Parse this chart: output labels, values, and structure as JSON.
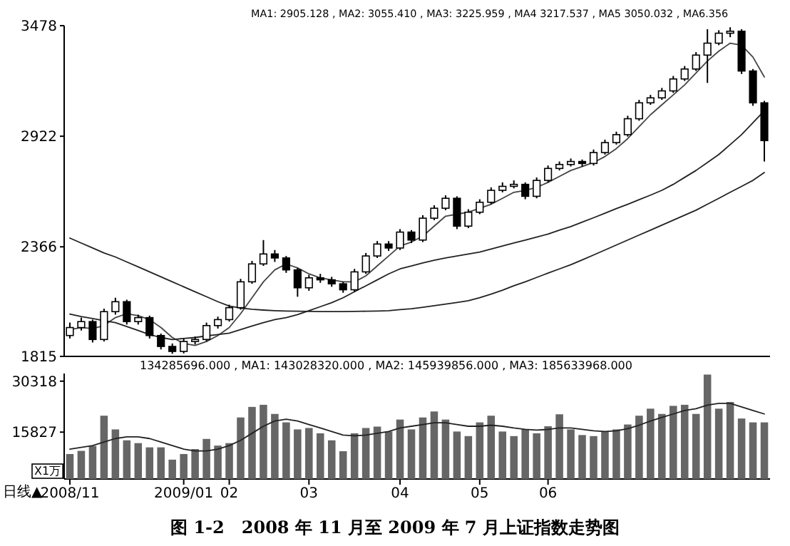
{
  "chart_data": [
    {
      "type": "candlestick",
      "categories": [
        null,
        null,
        null,
        null,
        null,
        null,
        null,
        null,
        null,
        null,
        null,
        null,
        null,
        null,
        null,
        null,
        null,
        null,
        null,
        null,
        null,
        null,
        null,
        null,
        null,
        null,
        null,
        null,
        null,
        null,
        null,
        null,
        null,
        null,
        null,
        null,
        null,
        null,
        null,
        null,
        null,
        null,
        null,
        null,
        null,
        null,
        null,
        null,
        null,
        null,
        null,
        null,
        null,
        null,
        null,
        null,
        null,
        null,
        null,
        null,
        null,
        null
      ],
      "ohlc": [
        [
          1920,
          1985,
          1905,
          1960
        ],
        [
          1960,
          2010,
          1945,
          1990
        ],
        [
          1990,
          2000,
          1885,
          1900
        ],
        [
          1900,
          2055,
          1890,
          2040
        ],
        [
          2040,
          2110,
          2025,
          2090
        ],
        [
          2090,
          2100,
          1975,
          1990
        ],
        [
          1990,
          2025,
          1975,
          2010
        ],
        [
          2010,
          2020,
          1905,
          1920
        ],
        [
          1920,
          1930,
          1850,
          1865
        ],
        [
          1865,
          1880,
          1828,
          1840
        ],
        [
          1840,
          1905,
          1830,
          1890
        ],
        [
          1890,
          1915,
          1875,
          1900
        ],
        [
          1900,
          1985,
          1890,
          1970
        ],
        [
          1970,
          2015,
          1955,
          2000
        ],
        [
          2000,
          2075,
          1990,
          2060
        ],
        [
          2060,
          2205,
          2050,
          2190
        ],
        [
          2190,
          2295,
          2180,
          2280
        ],
        [
          2280,
          2400,
          2270,
          2330
        ],
        [
          2330,
          2350,
          2290,
          2310
        ],
        [
          2310,
          2320,
          2235,
          2250
        ],
        [
          2250,
          2260,
          2115,
          2160
        ],
        [
          2160,
          2225,
          2145,
          2210
        ],
        [
          2210,
          2230,
          2185,
          2200
        ],
        [
          2200,
          2215,
          2165,
          2180
        ],
        [
          2180,
          2190,
          2135,
          2150
        ],
        [
          2150,
          2255,
          2140,
          2240
        ],
        [
          2240,
          2335,
          2230,
          2320
        ],
        [
          2320,
          2395,
          2310,
          2380
        ],
        [
          2380,
          2395,
          2345,
          2360
        ],
        [
          2360,
          2455,
          2350,
          2440
        ],
        [
          2440,
          2450,
          2385,
          2400
        ],
        [
          2400,
          2525,
          2390,
          2510
        ],
        [
          2510,
          2575,
          2500,
          2560
        ],
        [
          2560,
          2625,
          2550,
          2610
        ],
        [
          2610,
          2620,
          2455,
          2470
        ],
        [
          2470,
          2555,
          2460,
          2540
        ],
        [
          2540,
          2605,
          2530,
          2590
        ],
        [
          2590,
          2665,
          2580,
          2650
        ],
        [
          2650,
          2690,
          2640,
          2670
        ],
        [
          2670,
          2700,
          2660,
          2680
        ],
        [
          2680,
          2690,
          2605,
          2620
        ],
        [
          2620,
          2715,
          2610,
          2700
        ],
        [
          2700,
          2775,
          2690,
          2760
        ],
        [
          2760,
          2795,
          2750,
          2780
        ],
        [
          2780,
          2810,
          2770,
          2795
        ],
        [
          2795,
          2805,
          2770,
          2785
        ],
        [
          2785,
          2855,
          2775,
          2840
        ],
        [
          2840,
          2905,
          2830,
          2890
        ],
        [
          2890,
          2945,
          2880,
          2930
        ],
        [
          2930,
          3025,
          2920,
          3010
        ],
        [
          3010,
          3105,
          3000,
          3090
        ],
        [
          3090,
          3130,
          3080,
          3115
        ],
        [
          3115,
          3165,
          3105,
          3150
        ],
        [
          3150,
          3225,
          3140,
          3210
        ],
        [
          3210,
          3275,
          3200,
          3260
        ],
        [
          3260,
          3345,
          3250,
          3330
        ],
        [
          3330,
          3460,
          3190,
          3390
        ],
        [
          3390,
          3455,
          3380,
          3440
        ],
        [
          3440,
          3470,
          3420,
          3450
        ],
        [
          3450,
          3460,
          3235,
          3250
        ],
        [
          3250,
          3260,
          3075,
          3090
        ],
        [
          3090,
          3100,
          2795,
          2900
        ]
      ],
      "series": [
        {
          "type": "line",
          "color": "#444444",
          "values": [
            1950,
            1960,
            1955,
            1970,
            2010,
            2030,
            2020,
            2000,
            1960,
            1910,
            1880,
            1870,
            1890,
            1920,
            1960,
            2030,
            2110,
            2190,
            2250,
            2280,
            2260,
            2230,
            2210,
            2200,
            2190,
            2190,
            2220,
            2270,
            2320,
            2370,
            2390,
            2420,
            2470,
            2520,
            2530,
            2540,
            2560,
            2580,
            2610,
            2640,
            2650,
            2665,
            2690,
            2720,
            2750,
            2770,
            2790,
            2820,
            2860,
            2910,
            2970,
            3030,
            3080,
            3130,
            3180,
            3240,
            3300,
            3350,
            3390,
            3380,
            3320,
            3220
          ]
        },
        {
          "type": "line",
          "color": "#222222",
          "values": [
            2028,
            2015,
            2005,
            1995,
            1985,
            1965,
            1945,
            1925,
            1910,
            1900,
            1905,
            1910,
            1918,
            1925,
            1932,
            1950,
            1968,
            1985,
            2000,
            2010,
            2025,
            2045,
            2065,
            2085,
            2110,
            2140,
            2170,
            2200,
            2230,
            2255,
            2270,
            2285,
            2298,
            2310,
            2320,
            2330,
            2340,
            2355,
            2370,
            2385,
            2400,
            2415,
            2430,
            2450,
            2468,
            2490,
            2512,
            2535,
            2558,
            2580,
            2603,
            2626,
            2650,
            2680,
            2715,
            2750,
            2790,
            2830,
            2880,
            2930,
            2990,
            3050
          ]
        },
        {
          "type": "line",
          "color": "#222222",
          "values": [
            2410,
            2385,
            2360,
            2335,
            2315,
            2290,
            2265,
            2240,
            2215,
            2190,
            2165,
            2140,
            2115,
            2090,
            2068,
            2058,
            2052,
            2048,
            2045,
            2043,
            2042,
            2041,
            2040,
            2040,
            2040,
            2041,
            2042,
            2043,
            2045,
            2050,
            2055,
            2062,
            2070,
            2078,
            2086,
            2095,
            2110,
            2128,
            2148,
            2170,
            2190,
            2212,
            2234,
            2255,
            2276,
            2300,
            2325,
            2350,
            2375,
            2400,
            2425,
            2450,
            2475,
            2500,
            2525,
            2550,
            2580,
            2610,
            2640,
            2670,
            2700,
            2740
          ]
        }
      ],
      "ylim": [
        1815,
        3478
      ],
      "yticks": [
        1815,
        2366,
        2922,
        3478
      ],
      "tick_labels": "y",
      "annotations": [
        "MA1: 2905.128 , MA2: 3055.410 , MA3: 3225.959 , MA4 3217.537 , MA5 3050.032 , MA6.356"
      ]
    },
    {
      "type": "bar",
      "categories": [
        "2008/11",
        null,
        null,
        null,
        null,
        null,
        null,
        null,
        null,
        null,
        "2009/01",
        null,
        null,
        null,
        "02",
        null,
        null,
        null,
        null,
        null,
        null,
        "03",
        null,
        null,
        null,
        null,
        null,
        null,
        null,
        "04",
        null,
        null,
        null,
        null,
        null,
        null,
        "05",
        null,
        null,
        null,
        null,
        null,
        "06",
        null,
        null,
        null,
        null,
        null,
        null,
        null,
        null,
        null,
        null,
        null,
        null,
        null,
        null,
        null,
        null,
        null,
        null,
        null
      ],
      "series": [
        {
          "color": "#666666",
          "values": [
            9600,
            10500,
            11900,
            20500,
            16600,
            13500,
            12700,
            11500,
            11500,
            8000,
            9600,
            11000,
            13900,
            12000,
            12700,
            20000,
            23000,
            23600,
            21000,
            18600,
            16600,
            17000,
            15500,
            13500,
            10400,
            15500,
            17000,
            17400,
            16000,
            19400,
            16600,
            20000,
            21700,
            19400,
            16000,
            14700,
            18600,
            20500,
            16000,
            14700,
            16600,
            15500,
            17500,
            20900,
            16600,
            15000,
            14700,
            16000,
            16600,
            18000,
            20500,
            22500,
            21000,
            23300,
            23600,
            21000,
            32200,
            22500,
            24400,
            19700,
            18600,
            18600
          ]
        },
        {
          "type": "line",
          "color": "#222222",
          "values": [
            11000,
            11500,
            12000,
            13000,
            14000,
            14500,
            14500,
            14000,
            13000,
            12000,
            11000,
            10500,
            10500,
            11000,
            12000,
            13500,
            15500,
            17500,
            19000,
            19500,
            19000,
            18000,
            17000,
            16000,
            15000,
            14800,
            15000,
            15500,
            16000,
            17000,
            17500,
            18000,
            18500,
            18500,
            18000,
            17500,
            17500,
            17800,
            17500,
            17000,
            16600,
            16400,
            16600,
            17000,
            17000,
            16600,
            16200,
            16000,
            16200,
            16800,
            17800,
            19000,
            20000,
            21000,
            22000,
            22500,
            23500,
            24000,
            24000,
            23000,
            22000,
            21000
          ]
        }
      ],
      "ylim": [
        2500,
        32500
      ],
      "yticks": [
        15827,
        30318
      ],
      "annotations": [
        "134285696.000 , MA1: 143028320.000 , MA2: 145939856.000 , MA3: 185633968.000",
        "X1万",
        "日线▲",
        "图 1-2　2008 年 11 月至 2009 年 7 月上证指数走势图"
      ]
    }
  ]
}
